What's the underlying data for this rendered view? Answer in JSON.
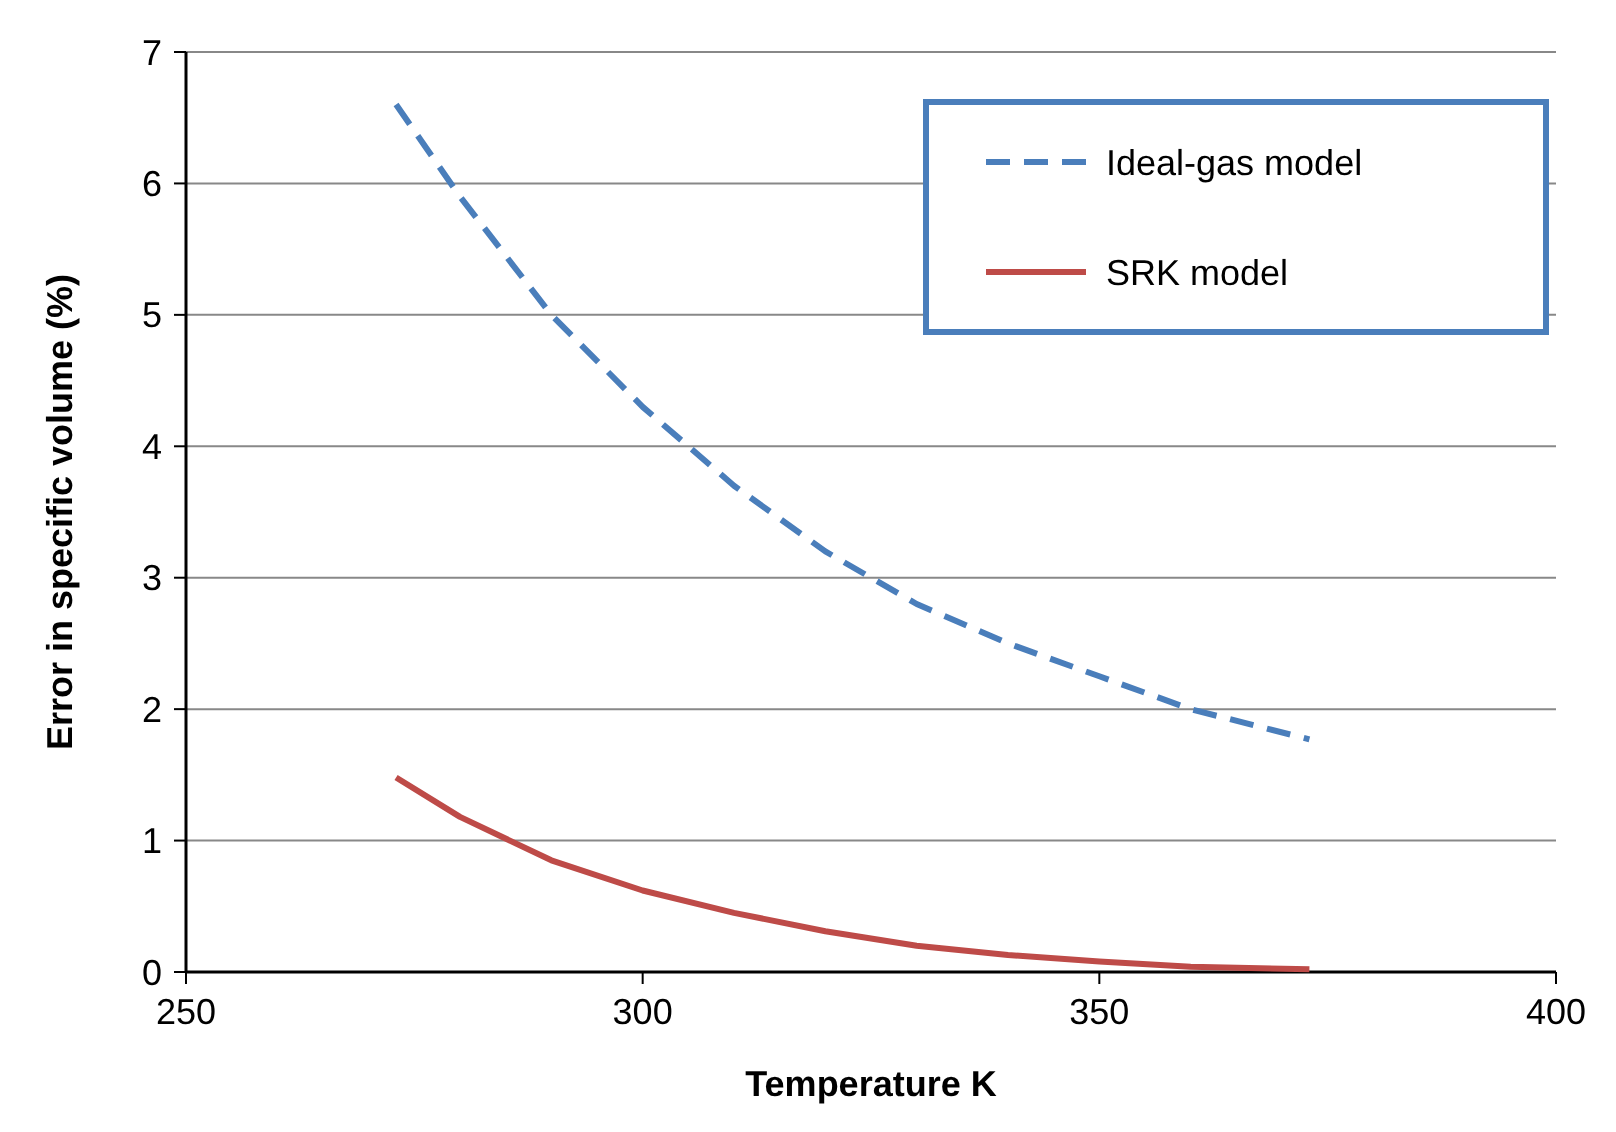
{
  "chart_data": {
    "type": "line",
    "xlabel": "Temperature K",
    "ylabel": "Error in specific volume (%)",
    "xlim": [
      250,
      400
    ],
    "xticks": [
      250,
      300,
      350,
      400
    ],
    "ylim": [
      0,
      7
    ],
    "yticks": [
      0,
      1,
      2,
      3,
      4,
      5,
      6,
      7
    ],
    "grid": "y",
    "legend": "top right",
    "series": [
      {
        "name": "Ideal-gas model",
        "color": "#4a7ebb",
        "line_style": "dashed",
        "x": [
          273,
          280,
          290,
          300,
          310,
          320,
          330,
          340,
          350,
          360,
          373
        ],
        "values": [
          6.6,
          5.9,
          5.0,
          4.3,
          3.7,
          3.2,
          2.8,
          2.5,
          2.25,
          2.0,
          1.77
        ]
      },
      {
        "name": "SRK model",
        "color": "#be4b48",
        "line_style": "solid",
        "x": [
          273,
          280,
          290,
          300,
          310,
          320,
          330,
          340,
          350,
          360,
          373
        ],
        "values": [
          1.48,
          1.18,
          0.85,
          0.62,
          0.45,
          0.31,
          0.2,
          0.13,
          0.08,
          0.04,
          0.02
        ]
      }
    ]
  }
}
